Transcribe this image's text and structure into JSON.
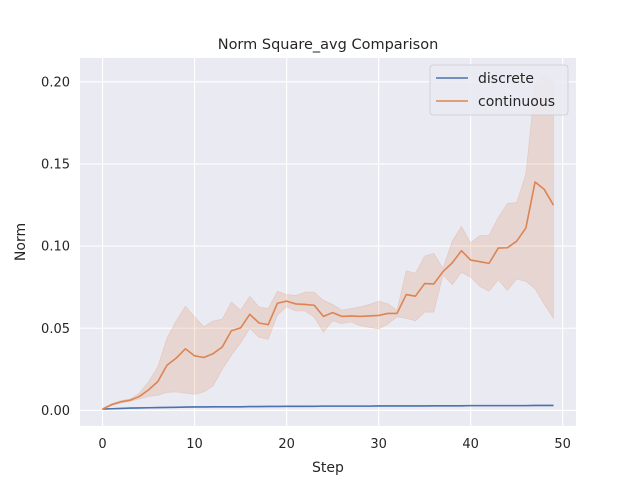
{
  "chart_data": {
    "type": "line",
    "title": "Norm Square_avg Comparison",
    "xlabel": "Step",
    "ylabel": "Norm",
    "xlim": [
      -2.45,
      51.45
    ],
    "ylim": [
      -0.0095,
      0.2145
    ],
    "xticks": [
      0,
      10,
      20,
      30,
      40,
      50
    ],
    "xtick_labels": [
      "0",
      "10",
      "20",
      "30",
      "40",
      "50"
    ],
    "yticks": [
      0.0,
      0.05,
      0.1,
      0.15,
      0.2
    ],
    "ytick_labels": [
      "0.00",
      "0.05",
      "0.10",
      "0.15",
      "0.20"
    ],
    "grid": true,
    "legend_position": "top-right",
    "x": [
      0,
      1,
      2,
      3,
      4,
      5,
      6,
      7,
      8,
      9,
      10,
      11,
      12,
      13,
      14,
      15,
      16,
      17,
      18,
      19,
      20,
      21,
      22,
      23,
      24,
      25,
      26,
      27,
      28,
      29,
      30,
      31,
      32,
      33,
      34,
      35,
      36,
      37,
      38,
      39,
      40,
      41,
      42,
      43,
      44,
      45,
      46,
      47,
      48,
      49
    ],
    "series": [
      {
        "name": "discrete",
        "color": "#4c72b0",
        "values": [
          0.0008,
          0.001,
          0.0012,
          0.0014,
          0.0015,
          0.0016,
          0.0017,
          0.0018,
          0.0019,
          0.002,
          0.0021,
          0.0021,
          0.0022,
          0.0022,
          0.0022,
          0.0022,
          0.0023,
          0.0023,
          0.0024,
          0.0024,
          0.0025,
          0.0025,
          0.0025,
          0.0025,
          0.0026,
          0.0026,
          0.0026,
          0.0026,
          0.0026,
          0.0026,
          0.0027,
          0.0027,
          0.0027,
          0.0027,
          0.0027,
          0.0027,
          0.0028,
          0.0028,
          0.0028,
          0.0028,
          0.0029,
          0.0029,
          0.0029,
          0.0029,
          0.0029,
          0.0029,
          0.0029,
          0.003,
          0.003,
          0.003
        ],
        "ci_lower": [
          0.0006,
          0.0008,
          0.001,
          0.0012,
          0.0013,
          0.0014,
          0.0015,
          0.0016,
          0.0017,
          0.0018,
          0.0018,
          0.0019,
          0.0019,
          0.002,
          0.002,
          0.002,
          0.0021,
          0.0021,
          0.0021,
          0.0022,
          0.0022,
          0.0022,
          0.0022,
          0.0023,
          0.0023,
          0.0023,
          0.0023,
          0.0023,
          0.0023,
          0.0023,
          0.0024,
          0.0024,
          0.0024,
          0.0024,
          0.0024,
          0.0024,
          0.0025,
          0.0025,
          0.0025,
          0.0025,
          0.0026,
          0.0026,
          0.0026,
          0.0026,
          0.0026,
          0.0026,
          0.0026,
          0.0027,
          0.0027,
          0.0027
        ],
        "ci_upper": [
          0.001,
          0.0012,
          0.0014,
          0.0016,
          0.0017,
          0.0018,
          0.0019,
          0.002,
          0.0021,
          0.0022,
          0.0024,
          0.0023,
          0.0025,
          0.0024,
          0.0024,
          0.0024,
          0.0025,
          0.0025,
          0.0027,
          0.0026,
          0.0028,
          0.0028,
          0.0028,
          0.0027,
          0.0029,
          0.0029,
          0.0029,
          0.0029,
          0.0029,
          0.0029,
          0.003,
          0.003,
          0.003,
          0.003,
          0.003,
          0.003,
          0.0031,
          0.0031,
          0.0031,
          0.0031,
          0.0032,
          0.0032,
          0.0032,
          0.0032,
          0.0032,
          0.0032,
          0.0032,
          0.0033,
          0.0033,
          0.0033
        ]
      },
      {
        "name": "continuous",
        "color": "#dd8452",
        "values": [
          0.0008,
          0.0035,
          0.0052,
          0.0062,
          0.0085,
          0.0125,
          0.0175,
          0.0275,
          0.0318,
          0.0375,
          0.0332,
          0.0322,
          0.0345,
          0.0385,
          0.0485,
          0.0502,
          0.0585,
          0.0532,
          0.0522,
          0.0652,
          0.0665,
          0.0648,
          0.0645,
          0.064,
          0.0572,
          0.0595,
          0.0572,
          0.0575,
          0.0572,
          0.0575,
          0.0578,
          0.059,
          0.059,
          0.0705,
          0.0695,
          0.0772,
          0.077,
          0.0845,
          0.0898,
          0.0972,
          0.0915,
          0.0905,
          0.0895,
          0.0988,
          0.099,
          0.103,
          0.111,
          0.139,
          0.1345,
          0.125
        ],
        "ci_lower": [
          0.0005,
          0.003,
          0.0045,
          0.0055,
          0.007,
          0.0085,
          0.0092,
          0.011,
          0.0112,
          0.0105,
          0.0098,
          0.0112,
          0.0148,
          0.0248,
          0.0335,
          0.041,
          0.05,
          0.0445,
          0.0432,
          0.058,
          0.063,
          0.0605,
          0.0605,
          0.0568,
          0.0475,
          0.0545,
          0.0528,
          0.0538,
          0.0515,
          0.0505,
          0.0495,
          0.0525,
          0.057,
          0.056,
          0.0545,
          0.0598,
          0.0598,
          0.0825,
          0.0765,
          0.084,
          0.081,
          0.0755,
          0.0725,
          0.0795,
          0.073,
          0.08,
          0.0785,
          0.074,
          0.0645,
          0.056
        ],
        "ci_upper": [
          0.0012,
          0.0042,
          0.006,
          0.007,
          0.0105,
          0.0175,
          0.0265,
          0.044,
          0.0545,
          0.0635,
          0.057,
          0.051,
          0.0545,
          0.0555,
          0.066,
          0.061,
          0.0695,
          0.063,
          0.062,
          0.0725,
          0.0705,
          0.07,
          0.072,
          0.072,
          0.067,
          0.0645,
          0.061,
          0.062,
          0.063,
          0.0645,
          0.0665,
          0.065,
          0.061,
          0.085,
          0.0835,
          0.094,
          0.0955,
          0.0865,
          0.103,
          0.112,
          0.102,
          0.1065,
          0.1065,
          0.1175,
          0.126,
          0.1265,
          0.144,
          0.198,
          0.204,
          0.2
        ]
      }
    ]
  }
}
